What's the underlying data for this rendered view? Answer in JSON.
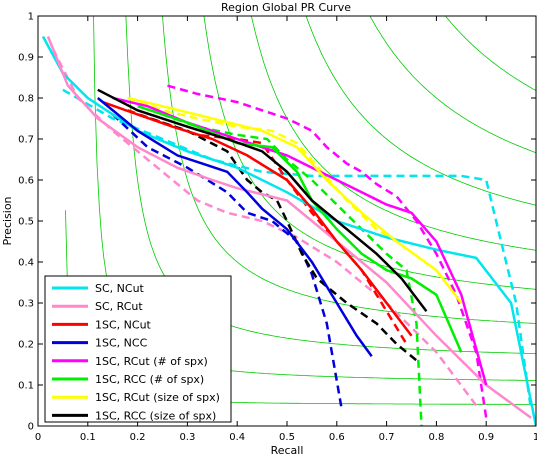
{
  "chart_data": {
    "type": "line",
    "title": "Region Global PR Curve",
    "xlabel": "Recall",
    "ylabel": "Precision",
    "xlim": [
      0,
      1
    ],
    "ylim": [
      0,
      1
    ],
    "xticks": [
      "0",
      "0.1",
      "0.2",
      "0.3",
      "0.4",
      "0.5",
      "0.6",
      "0.7",
      "0.8",
      "0.9",
      "1"
    ],
    "yticks": [
      "0",
      "0.1",
      "0.2",
      "0.3",
      "0.4",
      "0.5",
      "0.6",
      "0.7",
      "0.8",
      "0.9",
      "1"
    ],
    "grid": false,
    "legend_location": "lower-left",
    "iso_f_contours": {
      "color": "#00cc00",
      "levels": [
        0.1,
        0.2,
        0.3,
        0.4,
        0.5,
        0.6,
        0.7,
        0.8,
        0.9
      ]
    },
    "series": [
      {
        "name": "SC, NCut",
        "color": "#00e5ee",
        "points": [
          [
            0.01,
            0.95
          ],
          [
            0.05,
            0.86
          ],
          [
            0.1,
            0.8
          ],
          [
            0.15,
            0.76
          ],
          [
            0.2,
            0.72
          ],
          [
            0.3,
            0.67
          ],
          [
            0.4,
            0.63
          ],
          [
            0.5,
            0.57
          ],
          [
            0.6,
            0.5
          ],
          [
            0.7,
            0.46
          ],
          [
            0.8,
            0.43
          ],
          [
            0.88,
            0.41
          ],
          [
            0.95,
            0.3
          ],
          [
            1.0,
            0.0
          ]
        ]
      },
      {
        "name": "SC, RCut",
        "color": "#ff88cc",
        "points": [
          [
            0.02,
            0.95
          ],
          [
            0.06,
            0.83
          ],
          [
            0.12,
            0.75
          ],
          [
            0.2,
            0.68
          ],
          [
            0.28,
            0.63
          ],
          [
            0.35,
            0.6
          ],
          [
            0.4,
            0.58
          ],
          [
            0.5,
            0.55
          ],
          [
            0.6,
            0.45
          ],
          [
            0.7,
            0.35
          ],
          [
            0.8,
            0.22
          ],
          [
            0.9,
            0.1
          ],
          [
            0.99,
            0.02
          ]
        ]
      },
      {
        "name": "1SC, NCut",
        "color": "#ff0000",
        "points": [
          [
            0.13,
            0.79
          ],
          [
            0.2,
            0.76
          ],
          [
            0.27,
            0.73
          ],
          [
            0.35,
            0.7
          ],
          [
            0.42,
            0.66
          ],
          [
            0.5,
            0.6
          ],
          [
            0.55,
            0.53
          ],
          [
            0.6,
            0.45
          ],
          [
            0.65,
            0.38
          ],
          [
            0.7,
            0.3
          ],
          [
            0.75,
            0.22
          ]
        ]
      },
      {
        "name": "1SC, NCC",
        "color": "#0000dd",
        "points": [
          [
            0.12,
            0.8
          ],
          [
            0.2,
            0.72
          ],
          [
            0.28,
            0.66
          ],
          [
            0.33,
            0.64
          ],
          [
            0.38,
            0.62
          ],
          [
            0.42,
            0.57
          ],
          [
            0.45,
            0.53
          ],
          [
            0.5,
            0.48
          ],
          [
            0.55,
            0.4
          ],
          [
            0.6,
            0.3
          ],
          [
            0.64,
            0.22
          ],
          [
            0.67,
            0.17
          ]
        ]
      },
      {
        "name": "1SC, RCut (# of spx)",
        "color": "#ff00ff",
        "points": [
          [
            0.15,
            0.8
          ],
          [
            0.22,
            0.78
          ],
          [
            0.3,
            0.74
          ],
          [
            0.4,
            0.7
          ],
          [
            0.5,
            0.66
          ],
          [
            0.6,
            0.6
          ],
          [
            0.65,
            0.57
          ],
          [
            0.7,
            0.54
          ],
          [
            0.75,
            0.52
          ],
          [
            0.8,
            0.45
          ],
          [
            0.85,
            0.32
          ],
          [
            0.9,
            0.1
          ]
        ]
      },
      {
        "name": "1SC, RCC (# of spx)",
        "color": "#00ee00",
        "points": [
          [
            0.2,
            0.78
          ],
          [
            0.3,
            0.74
          ],
          [
            0.4,
            0.69
          ],
          [
            0.47,
            0.68
          ],
          [
            0.52,
            0.62
          ],
          [
            0.55,
            0.55
          ],
          [
            0.6,
            0.48
          ],
          [
            0.65,
            0.42
          ],
          [
            0.7,
            0.38
          ],
          [
            0.75,
            0.36
          ],
          [
            0.8,
            0.32
          ],
          [
            0.85,
            0.18
          ]
        ]
      },
      {
        "name": "1SC, RCut (size of spx)",
        "color": "#ffff00",
        "points": [
          [
            0.18,
            0.8
          ],
          [
            0.25,
            0.78
          ],
          [
            0.35,
            0.75
          ],
          [
            0.45,
            0.72
          ],
          [
            0.52,
            0.68
          ],
          [
            0.58,
            0.6
          ],
          [
            0.65,
            0.52
          ],
          [
            0.72,
            0.45
          ],
          [
            0.8,
            0.38
          ],
          [
            0.85,
            0.3
          ]
        ]
      },
      {
        "name": "1SC, RCC (size of spx)",
        "color": "#000000",
        "points": [
          [
            0.12,
            0.82
          ],
          [
            0.2,
            0.77
          ],
          [
            0.3,
            0.73
          ],
          [
            0.38,
            0.7
          ],
          [
            0.45,
            0.67
          ],
          [
            0.5,
            0.62
          ],
          [
            0.55,
            0.55
          ],
          [
            0.62,
            0.48
          ],
          [
            0.68,
            0.42
          ],
          [
            0.73,
            0.36
          ],
          [
            0.78,
            0.28
          ]
        ]
      }
    ],
    "dashed_series": [
      {
        "color": "#00e5ee",
        "points": [
          [
            0.05,
            0.82
          ],
          [
            0.15,
            0.75
          ],
          [
            0.25,
            0.7
          ],
          [
            0.35,
            0.65
          ],
          [
            0.45,
            0.62
          ],
          [
            0.55,
            0.61
          ],
          [
            0.65,
            0.61
          ],
          [
            0.75,
            0.61
          ],
          [
            0.85,
            0.61
          ],
          [
            0.9,
            0.6
          ],
          [
            0.93,
            0.45
          ],
          [
            0.96,
            0.3
          ],
          [
            0.99,
            0.04
          ]
        ]
      },
      {
        "color": "#ff88cc",
        "points": [
          [
            0.03,
            0.92
          ],
          [
            0.08,
            0.8
          ],
          [
            0.15,
            0.72
          ],
          [
            0.2,
            0.67
          ],
          [
            0.25,
            0.62
          ],
          [
            0.32,
            0.55
          ],
          [
            0.38,
            0.52
          ],
          [
            0.45,
            0.5
          ],
          [
            0.52,
            0.46
          ],
          [
            0.6,
            0.4
          ],
          [
            0.7,
            0.3
          ],
          [
            0.8,
            0.18
          ],
          [
            0.88,
            0.05
          ]
        ]
      },
      {
        "color": "#ff0000",
        "points": [
          [
            0.18,
            0.77
          ],
          [
            0.25,
            0.74
          ],
          [
            0.32,
            0.71
          ],
          [
            0.4,
            0.7
          ],
          [
            0.45,
            0.69
          ],
          [
            0.5,
            0.6
          ],
          [
            0.55,
            0.52
          ],
          [
            0.6,
            0.45
          ],
          [
            0.65,
            0.38
          ],
          [
            0.7,
            0.28
          ],
          [
            0.74,
            0.2
          ]
        ]
      },
      {
        "color": "#0000dd",
        "points": [
          [
            0.15,
            0.76
          ],
          [
            0.22,
            0.68
          ],
          [
            0.3,
            0.63
          ],
          [
            0.38,
            0.57
          ],
          [
            0.42,
            0.52
          ],
          [
            0.47,
            0.5
          ],
          [
            0.52,
            0.45
          ],
          [
            0.55,
            0.37
          ],
          [
            0.58,
            0.25
          ],
          [
            0.61,
            0.04
          ]
        ]
      },
      {
        "color": "#ff00ff",
        "points": [
          [
            0.26,
            0.83
          ],
          [
            0.32,
            0.81
          ],
          [
            0.4,
            0.79
          ],
          [
            0.45,
            0.77
          ],
          [
            0.5,
            0.75
          ],
          [
            0.55,
            0.72
          ],
          [
            0.58,
            0.68
          ],
          [
            0.62,
            0.64
          ],
          [
            0.65,
            0.62
          ],
          [
            0.68,
            0.59
          ],
          [
            0.72,
            0.56
          ],
          [
            0.76,
            0.5
          ],
          [
            0.8,
            0.42
          ],
          [
            0.84,
            0.32
          ],
          [
            0.88,
            0.18
          ],
          [
            0.9,
            0.02
          ]
        ]
      },
      {
        "color": "#00ee00",
        "points": [
          [
            0.25,
            0.76
          ],
          [
            0.32,
            0.73
          ],
          [
            0.4,
            0.71
          ],
          [
            0.46,
            0.7
          ],
          [
            0.5,
            0.65
          ],
          [
            0.55,
            0.6
          ],
          [
            0.6,
            0.54
          ],
          [
            0.65,
            0.48
          ],
          [
            0.7,
            0.42
          ],
          [
            0.74,
            0.38
          ],
          [
            0.76,
            0.25
          ],
          [
            0.77,
            0.0
          ]
        ]
      },
      {
        "color": "#ffff00",
        "points": [
          [
            0.18,
            0.8
          ],
          [
            0.25,
            0.77
          ],
          [
            0.32,
            0.75
          ],
          [
            0.4,
            0.73
          ],
          [
            0.47,
            0.72
          ],
          [
            0.52,
            0.69
          ],
          [
            0.57,
            0.62
          ],
          [
            0.62,
            0.55
          ],
          [
            0.68,
            0.48
          ],
          [
            0.72,
            0.45
          ]
        ]
      },
      {
        "color": "#000000",
        "points": [
          [
            0.2,
            0.76
          ],
          [
            0.3,
            0.72
          ],
          [
            0.38,
            0.67
          ],
          [
            0.42,
            0.6
          ],
          [
            0.45,
            0.57
          ],
          [
            0.48,
            0.55
          ],
          [
            0.5,
            0.5
          ],
          [
            0.53,
            0.42
          ],
          [
            0.56,
            0.36
          ],
          [
            0.62,
            0.3
          ],
          [
            0.68,
            0.25
          ],
          [
            0.72,
            0.2
          ],
          [
            0.76,
            0.16
          ]
        ]
      }
    ]
  }
}
